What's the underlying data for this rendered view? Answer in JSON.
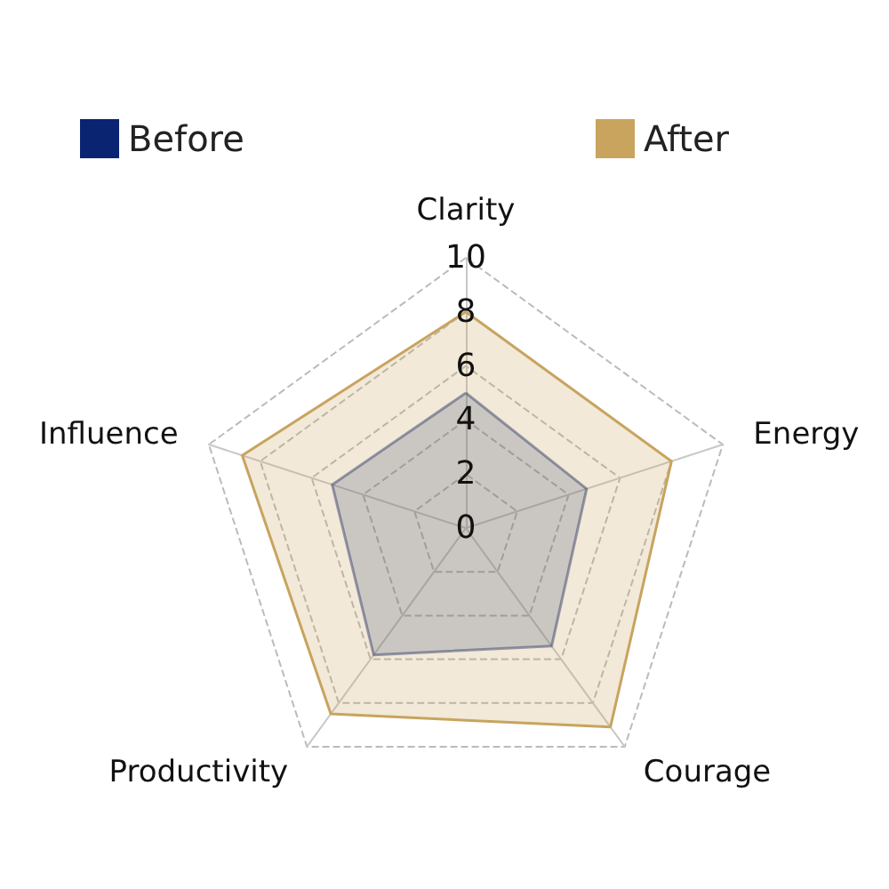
{
  "chart_data": {
    "type": "radar",
    "categories": [
      "Clarity",
      "Energy",
      "Courage",
      "Productivity",
      "Influence"
    ],
    "series": [
      {
        "name": "Before",
        "color": "#0a2472",
        "values": [
          5,
          4.7,
          5.4,
          5.8,
          5.2
        ]
      },
      {
        "name": "After",
        "color": "#c8a45f",
        "values": [
          8,
          8,
          9.1,
          8.5,
          8.7
        ]
      }
    ],
    "ylim": [
      0,
      10
    ],
    "yticks": [
      0,
      2,
      4,
      6,
      8,
      10
    ],
    "grid": true,
    "legend": "top"
  }
}
